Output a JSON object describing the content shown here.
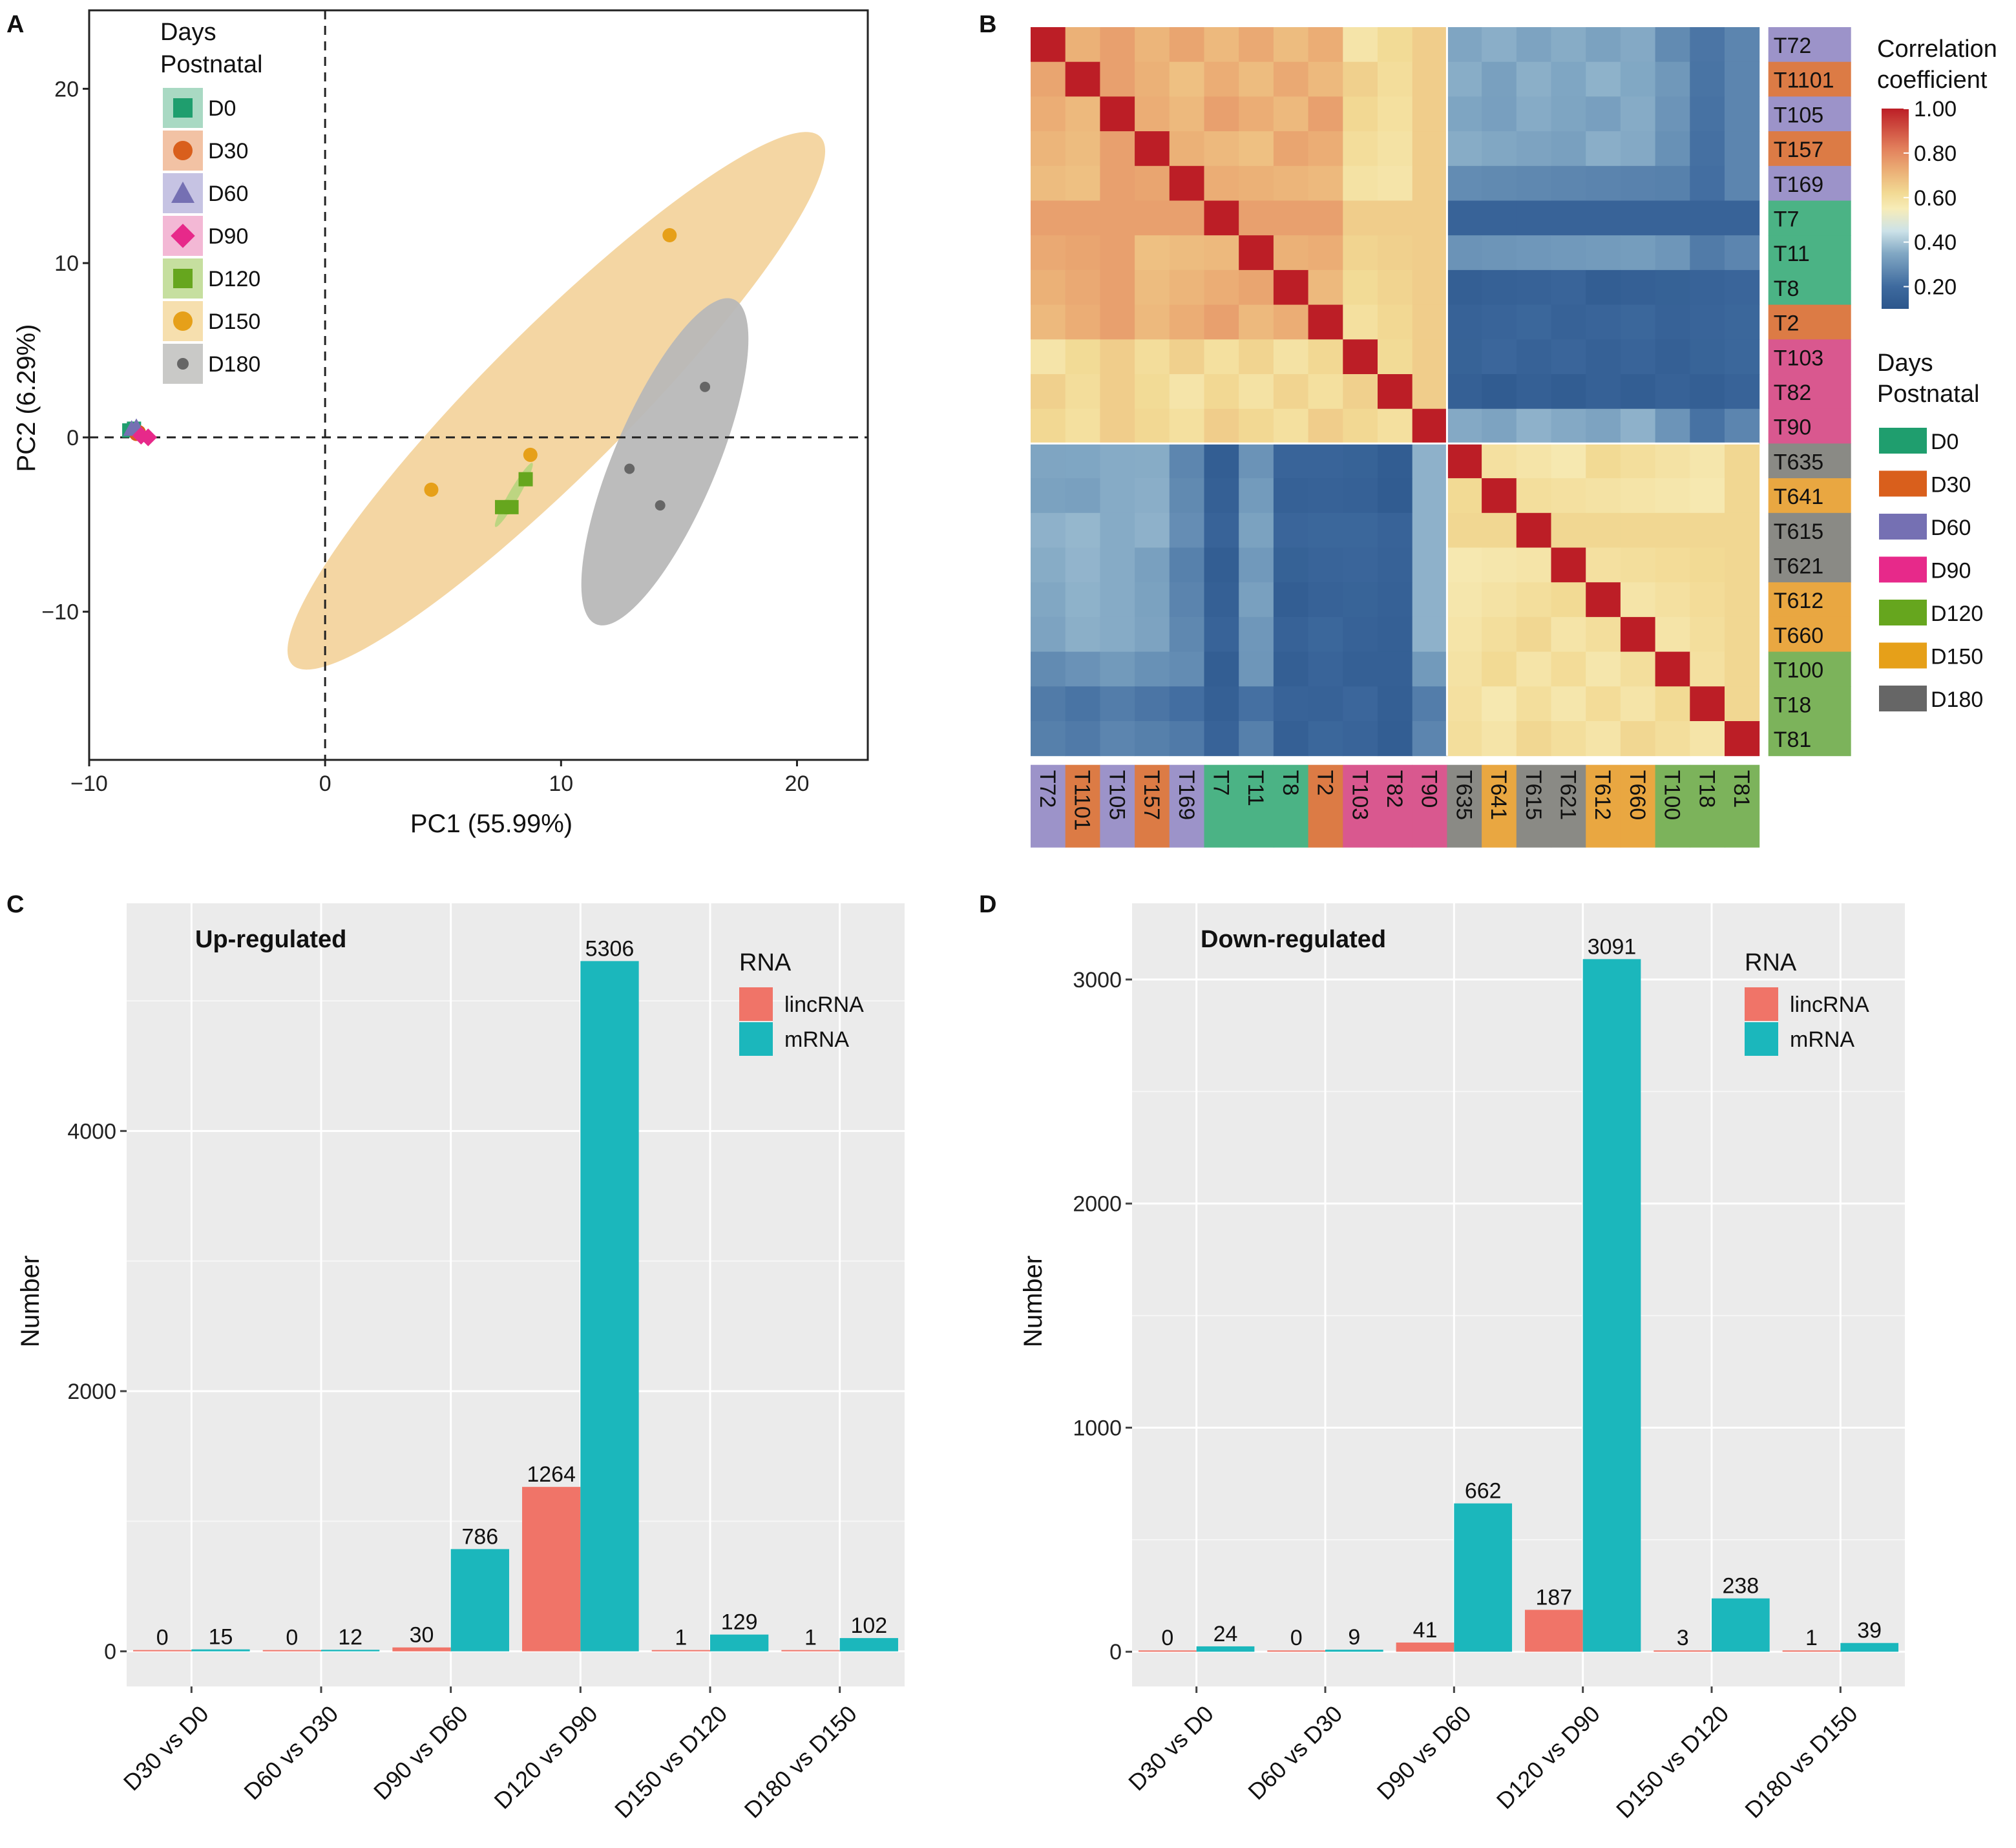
{
  "chart_data": [
    {
      "panel": "A",
      "type": "scatter",
      "xlabel": "PC1 (55.99%)",
      "ylabel": "PC2 (6.29%)",
      "xlim": [
        -10,
        23
      ],
      "ylim": [
        -18.5,
        24.5
      ],
      "xticks": [
        -10,
        0,
        10,
        20
      ],
      "yticks": [
        -10,
        0,
        10,
        20
      ],
      "tick_labels": {
        "x": [
          "−10",
          "0",
          "10",
          "20"
        ],
        "y": [
          "−10",
          "0",
          "10",
          "20"
        ]
      },
      "legend_title": [
        "Days",
        "Postnatal"
      ],
      "groups": [
        {
          "name": "D0",
          "color": "#1f9e6e",
          "shape": "square",
          "points": [
            [
              -8.3,
              0.4
            ],
            [
              -8.1,
              0.5
            ]
          ]
        },
        {
          "name": "D30",
          "color": "#d95f1c",
          "shape": "circle",
          "points": [
            [
              -8.0,
              0.2
            ],
            [
              -7.9,
              0.3
            ]
          ]
        },
        {
          "name": "D60",
          "color": "#7570b3",
          "shape": "triangle",
          "points": [
            [
              -8.2,
              0.5
            ],
            [
              -8.0,
              0.6
            ]
          ]
        },
        {
          "name": "D90",
          "color": "#e7298a",
          "shape": "diamond",
          "points": [
            [
              -7.8,
              0.1
            ],
            [
              -7.5,
              0.0
            ]
          ]
        },
        {
          "name": "D120",
          "color": "#66a61e",
          "shape": "square",
          "points": [
            [
              7.5,
              -4.0
            ],
            [
              7.9,
              -4.0
            ],
            [
              8.5,
              -2.4
            ]
          ]
        },
        {
          "name": "D150",
          "color": "#e6a019",
          "shape": "circle",
          "points": [
            [
              4.5,
              -3.0
            ],
            [
              8.7,
              -1.0
            ],
            [
              14.6,
              11.6
            ]
          ]
        },
        {
          "name": "D180",
          "color": "#666666",
          "shape": "circle",
          "points": [
            [
              12.9,
              -1.8
            ],
            [
              14.2,
              -3.9
            ],
            [
              16.1,
              2.9
            ]
          ]
        }
      ],
      "ellipses": [
        {
          "group": "D150",
          "color": "#f3d49e",
          "center": [
            9.8,
            2.1
          ],
          "semi_axes": [
            18.2,
            3.5
          ],
          "angle_deg": 45
        },
        {
          "group": "D180",
          "color": "#b8b8b8",
          "center": [
            14.4,
            -1.4
          ],
          "semi_axes": [
            8.6,
            2.5
          ],
          "angle_deg": 67
        },
        {
          "group": "D120",
          "color": "#b9d57f",
          "center": [
            8.0,
            -3.3
          ],
          "semi_axes": [
            1.8,
            0.25
          ],
          "angle_deg": 60
        }
      ]
    },
    {
      "panel": "B",
      "type": "heatmap",
      "samples": [
        "T72",
        "T1101",
        "T105",
        "T157",
        "T169",
        "T7",
        "T11",
        "T8",
        "T2",
        "T103",
        "T82",
        "T90",
        "T635",
        "T641",
        "T615",
        "T621",
        "T612",
        "T660",
        "T100",
        "T18",
        "T81"
      ],
      "sample_groups": [
        "D60",
        "D30",
        "D60",
        "D30",
        "D60",
        "D0",
        "D0",
        "D0",
        "D30",
        "D90",
        "D90",
        "D90",
        "D180",
        "D150",
        "D180",
        "D180",
        "D150",
        "D150",
        "D120",
        "D120",
        "D120"
      ],
      "colorbar_title": [
        "Correlation",
        "coefficient"
      ],
      "colorbar_ticks": [
        "1.00",
        "0.80",
        "0.60",
        "0.40",
        "0.20"
      ],
      "colorbar_range": [
        0.1,
        1.0
      ],
      "legend_title": [
        "Days",
        "Postnatal"
      ],
      "legend_items": [
        {
          "name": "D0",
          "color": "#1f9e6e"
        },
        {
          "name": "D30",
          "color": "#d95f1c"
        },
        {
          "name": "D60",
          "color": "#7570b3"
        },
        {
          "name": "D90",
          "color": "#e7298a"
        },
        {
          "name": "D120",
          "color": "#66a61e"
        },
        {
          "name": "D150",
          "color": "#e6a019"
        },
        {
          "name": "D180",
          "color": "#666666"
        }
      ],
      "annotation_colors": {
        "D0": "#4bb385",
        "D30": "#dc7b45",
        "D60": "#9c93c9",
        "D90": "#d9588f",
        "D120": "#7cb35b",
        "D150": "#e9a741",
        "D180": "#8a8a85"
      },
      "block_between": {
        "A": 0.7,
        "B": 0.6,
        "AB_cols": [
          0.3,
          0.31,
          0.29,
          0.3,
          0.22,
          0.1,
          0.27,
          0.11,
          0.12,
          0.12,
          0.1,
          0.3,
          0.31,
          0.3,
          0.33,
          0.32,
          0.36,
          0.33,
          0.25,
          0.18,
          0.2
        ]
      }
    },
    {
      "panel": "C",
      "type": "bar",
      "title": "Up-regulated",
      "ylabel": "Number",
      "xlabel": "",
      "ylim": [
        -270,
        5750
      ],
      "yticks": [
        0,
        2000,
        4000
      ],
      "categories": [
        "D30 vs D0",
        "D60 vs D30",
        "D90 vs D60",
        "D120 vs D90",
        "D150 vs D120",
        "D180 vs D150"
      ],
      "legend_title": "RNA",
      "series": [
        {
          "name": "lincRNA",
          "color": "#f07468",
          "values": [
            0,
            0,
            30,
            1264,
            1,
            1
          ]
        },
        {
          "name": "mRNA",
          "color": "#1bb7bc",
          "values": [
            15,
            12,
            786,
            5306,
            129,
            102
          ]
        }
      ]
    },
    {
      "panel": "D",
      "type": "bar",
      "title": "Down-regulated",
      "ylabel": "Number",
      "xlabel": "",
      "ylim": [
        -155,
        3340
      ],
      "yticks": [
        0,
        1000,
        2000,
        3000
      ],
      "categories": [
        "D30 vs D0",
        "D60 vs D30",
        "D90 vs D60",
        "D120 vs D90",
        "D150 vs D120",
        "D180 vs D150"
      ],
      "legend_title": "RNA",
      "series": [
        {
          "name": "lincRNA",
          "color": "#f07468",
          "values": [
            0,
            0,
            41,
            187,
            3,
            1
          ]
        },
        {
          "name": "mRNA",
          "color": "#1bb7bc",
          "values": [
            24,
            9,
            662,
            3091,
            238,
            39
          ]
        }
      ]
    }
  ],
  "panels": {
    "A": "A",
    "B": "B",
    "C": "C",
    "D": "D"
  }
}
